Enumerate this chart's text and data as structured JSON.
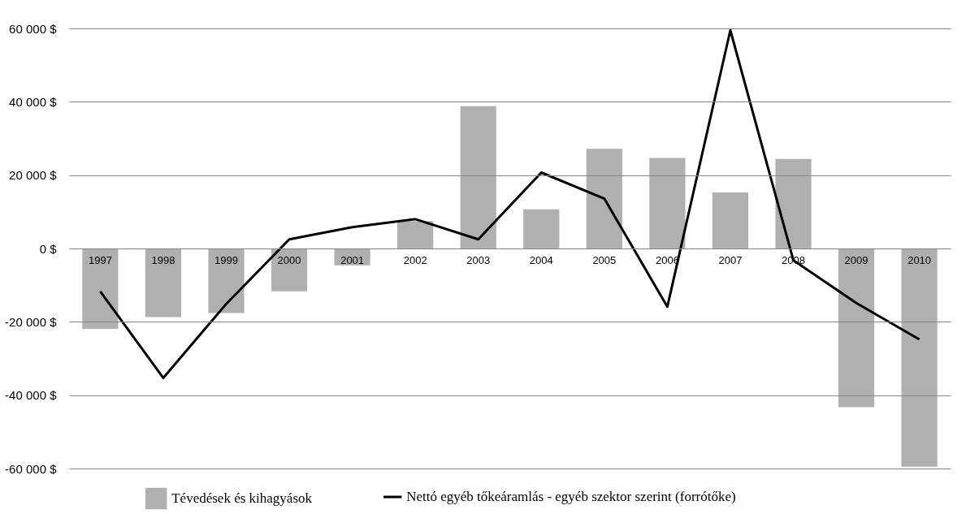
{
  "chart_data": {
    "type": "bar",
    "categories": [
      "1997",
      "1998",
      "1999",
      "2000",
      "2001",
      "2002",
      "2003",
      "2004",
      "2005",
      "2006",
      "2007",
      "2008",
      "2009",
      "2010"
    ],
    "series": [
      {
        "name": "Tévedések és kihagyások",
        "color": "#b0b0b0",
        "values": [
          -21900,
          -18700,
          -17600,
          -11700,
          -4600,
          7500,
          38800,
          10700,
          27200,
          24700,
          15300,
          24400,
          -43300,
          -59500
        ]
      },
      {
        "name": "Nettó egyéb tőkeáramlás  - egyéb szektor szerint (forrótőke)",
        "type": "line",
        "color": "#000000",
        "values": [
          -11700,
          -35300,
          -15100,
          2500,
          5800,
          8000,
          2500,
          20700,
          13600,
          -15900,
          59500,
          -3200,
          -14900,
          -24800
        ]
      }
    ],
    "ylim": [
      -60000,
      60000
    ],
    "yticks": [
      {
        "value": -60000,
        "label": "-60 000 $"
      },
      {
        "value": -40000,
        "label": "-40 000 $"
      },
      {
        "value": -20000,
        "label": "-20 000 $"
      },
      {
        "value": 0,
        "label": "0 $"
      },
      {
        "value": 20000,
        "label": "20 000 $"
      },
      {
        "value": 40000,
        "label": "40 000 $"
      },
      {
        "value": 60000,
        "label": "60 000 $"
      }
    ],
    "grid": "y",
    "legend": "bottom",
    "marker": "none",
    "line_style": "solid"
  }
}
